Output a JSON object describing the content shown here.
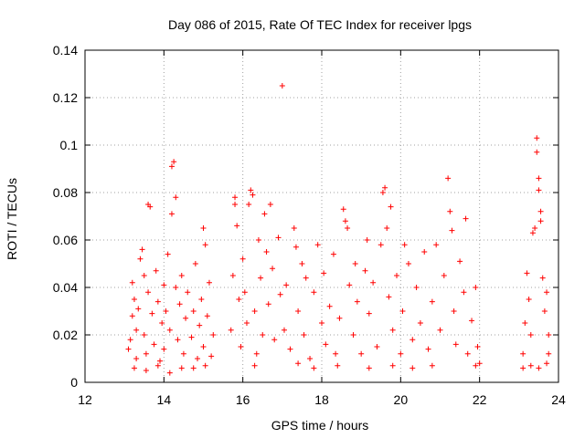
{
  "chart_data": {
    "type": "scatter",
    "title": "Day 086 of 2015, Rate Of TEC Index for receiver lpgs",
    "xlabel": "GPS time / hours",
    "ylabel": "ROTI / TECUs",
    "xlim": [
      12,
      24
    ],
    "ylim": [
      0,
      0.14
    ],
    "xticks": [
      "12",
      "14",
      "16",
      "18",
      "20",
      "22",
      "24"
    ],
    "yticks": [
      "0",
      "0.02",
      "0.04",
      "0.06",
      "0.08",
      "0.1",
      "0.12",
      "0.14"
    ],
    "xtick_values": [
      12,
      14,
      16,
      18,
      20,
      22,
      24
    ],
    "ytick_values": [
      0,
      0.02,
      0.04,
      0.06,
      0.08,
      0.1,
      0.12,
      0.14
    ],
    "grid": true,
    "marker": "+",
    "color": "#ff0000",
    "series": [
      {
        "name": "ROTI",
        "points": [
          [
            13.1,
            0.014
          ],
          [
            13.15,
            0.018
          ],
          [
            13.2,
            0.028
          ],
          [
            13.2,
            0.042
          ],
          [
            13.25,
            0.035
          ],
          [
            13.3,
            0.022
          ],
          [
            13.3,
            0.01
          ],
          [
            13.35,
            0.031
          ],
          [
            13.4,
            0.052
          ],
          [
            13.45,
            0.056
          ],
          [
            13.5,
            0.045
          ],
          [
            13.5,
            0.02
          ],
          [
            13.55,
            0.012
          ],
          [
            13.6,
            0.038
          ],
          [
            13.6,
            0.075
          ],
          [
            13.65,
            0.074
          ],
          [
            13.7,
            0.029
          ],
          [
            13.75,
            0.016
          ],
          [
            13.8,
            0.047
          ],
          [
            13.85,
            0.034
          ],
          [
            13.9,
            0.009
          ],
          [
            13.95,
            0.025
          ],
          [
            14.0,
            0.041
          ],
          [
            14.0,
            0.014
          ],
          [
            14.05,
            0.03
          ],
          [
            14.1,
            0.054
          ],
          [
            14.15,
            0.022
          ],
          [
            14.2,
            0.071
          ],
          [
            14.2,
            0.091
          ],
          [
            14.25,
            0.093
          ],
          [
            14.3,
            0.078
          ],
          [
            14.3,
            0.04
          ],
          [
            14.35,
            0.018
          ],
          [
            14.4,
            0.033
          ],
          [
            14.45,
            0.045
          ],
          [
            14.5,
            0.012
          ],
          [
            14.55,
            0.027
          ],
          [
            14.6,
            0.038
          ],
          [
            14.7,
            0.019
          ],
          [
            14.75,
            0.03
          ],
          [
            14.8,
            0.05
          ],
          [
            14.85,
            0.01
          ],
          [
            14.9,
            0.024
          ],
          [
            14.95,
            0.035
          ],
          [
            15.0,
            0.065
          ],
          [
            15.0,
            0.015
          ],
          [
            15.05,
            0.058
          ],
          [
            15.1,
            0.028
          ],
          [
            15.15,
            0.042
          ],
          [
            15.2,
            0.011
          ],
          [
            15.25,
            0.02
          ],
          [
            13.25,
            0.006
          ],
          [
            13.55,
            0.005
          ],
          [
            13.85,
            0.007
          ],
          [
            14.15,
            0.004
          ],
          [
            14.45,
            0.006
          ],
          [
            14.75,
            0.006
          ],
          [
            15.05,
            0.007
          ],
          [
            15.7,
            0.022
          ],
          [
            15.75,
            0.045
          ],
          [
            15.8,
            0.078
          ],
          [
            15.8,
            0.075
          ],
          [
            15.85,
            0.066
          ],
          [
            15.9,
            0.035
          ],
          [
            15.95,
            0.015
          ],
          [
            16.0,
            0.052
          ],
          [
            16.05,
            0.038
          ],
          [
            16.1,
            0.025
          ],
          [
            16.15,
            0.075
          ],
          [
            16.2,
            0.081
          ],
          [
            16.25,
            0.079
          ],
          [
            16.3,
            0.03
          ],
          [
            16.35,
            0.012
          ],
          [
            16.4,
            0.06
          ],
          [
            16.45,
            0.044
          ],
          [
            16.5,
            0.02
          ],
          [
            16.55,
            0.071
          ],
          [
            16.6,
            0.055
          ],
          [
            16.65,
            0.033
          ],
          [
            16.7,
            0.075
          ],
          [
            16.75,
            0.048
          ],
          [
            16.8,
            0.018
          ],
          [
            16.9,
            0.061
          ],
          [
            16.95,
            0.037
          ],
          [
            17.0,
            0.125
          ],
          [
            17.05,
            0.022
          ],
          [
            17.1,
            0.041
          ],
          [
            17.2,
            0.014
          ],
          [
            17.3,
            0.065
          ],
          [
            17.35,
            0.057
          ],
          [
            17.4,
            0.03
          ],
          [
            17.5,
            0.05
          ],
          [
            17.55,
            0.02
          ],
          [
            17.6,
            0.044
          ],
          [
            17.7,
            0.01
          ],
          [
            17.8,
            0.038
          ],
          [
            17.9,
            0.058
          ],
          [
            18.0,
            0.025
          ],
          [
            18.05,
            0.046
          ],
          [
            18.1,
            0.016
          ],
          [
            18.2,
            0.032
          ],
          [
            18.3,
            0.054
          ],
          [
            18.35,
            0.012
          ],
          [
            18.45,
            0.027
          ],
          [
            18.55,
            0.073
          ],
          [
            18.6,
            0.068
          ],
          [
            18.65,
            0.065
          ],
          [
            18.7,
            0.041
          ],
          [
            18.8,
            0.02
          ],
          [
            18.85,
            0.05
          ],
          [
            18.9,
            0.034
          ],
          [
            19.0,
            0.012
          ],
          [
            19.1,
            0.047
          ],
          [
            19.15,
            0.06
          ],
          [
            19.2,
            0.029
          ],
          [
            19.3,
            0.042
          ],
          [
            19.4,
            0.015
          ],
          [
            19.5,
            0.058
          ],
          [
            19.55,
            0.08
          ],
          [
            19.6,
            0.082
          ],
          [
            19.65,
            0.065
          ],
          [
            19.7,
            0.036
          ],
          [
            19.75,
            0.074
          ],
          [
            19.8,
            0.022
          ],
          [
            19.9,
            0.045
          ],
          [
            20.0,
            0.012
          ],
          [
            20.05,
            0.03
          ],
          [
            20.1,
            0.058
          ],
          [
            20.2,
            0.05
          ],
          [
            20.3,
            0.018
          ],
          [
            20.4,
            0.04
          ],
          [
            20.5,
            0.025
          ],
          [
            20.6,
            0.055
          ],
          [
            20.7,
            0.014
          ],
          [
            20.8,
            0.034
          ],
          [
            20.9,
            0.058
          ],
          [
            21.0,
            0.022
          ],
          [
            21.1,
            0.045
          ],
          [
            21.2,
            0.086
          ],
          [
            21.25,
            0.072
          ],
          [
            21.3,
            0.064
          ],
          [
            21.35,
            0.03
          ],
          [
            21.4,
            0.016
          ],
          [
            21.5,
            0.051
          ],
          [
            21.6,
            0.038
          ],
          [
            21.65,
            0.069
          ],
          [
            21.7,
            0.012
          ],
          [
            21.8,
            0.026
          ],
          [
            21.9,
            0.04
          ],
          [
            21.95,
            0.015
          ],
          [
            22.0,
            0.008
          ],
          [
            21.9,
            0.007
          ],
          [
            17.4,
            0.008
          ],
          [
            17.8,
            0.006
          ],
          [
            18.4,
            0.007
          ],
          [
            19.2,
            0.006
          ],
          [
            19.8,
            0.007
          ],
          [
            20.3,
            0.006
          ],
          [
            20.8,
            0.007
          ],
          [
            16.3,
            0.007
          ],
          [
            23.1,
            0.012
          ],
          [
            23.15,
            0.025
          ],
          [
            23.2,
            0.046
          ],
          [
            23.25,
            0.035
          ],
          [
            23.3,
            0.02
          ],
          [
            23.35,
            0.063
          ],
          [
            23.4,
            0.065
          ],
          [
            23.45,
            0.103
          ],
          [
            23.45,
            0.097
          ],
          [
            23.5,
            0.086
          ],
          [
            23.5,
            0.081
          ],
          [
            23.55,
            0.072
          ],
          [
            23.55,
            0.068
          ],
          [
            23.6,
            0.044
          ],
          [
            23.65,
            0.03
          ],
          [
            23.7,
            0.038
          ],
          [
            23.75,
            0.012
          ],
          [
            23.75,
            0.02
          ],
          [
            23.1,
            0.006
          ],
          [
            23.3,
            0.007
          ],
          [
            23.5,
            0.006
          ],
          [
            23.7,
            0.008
          ]
        ]
      }
    ]
  }
}
